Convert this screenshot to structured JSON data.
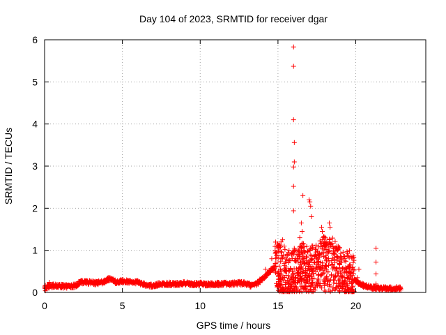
{
  "chart_data": {
    "type": "scatter",
    "title": "Day 104 of 2023, SRMTID for receiver dgar",
    "xlabel": "GPS time / hours",
    "ylabel": "SRMTID / TECUs",
    "xlim": [
      0,
      24.5
    ],
    "ylim": [
      0,
      6
    ],
    "grid": true,
    "marker": "+",
    "marker_color": "#ff0000",
    "x_ticks": [
      0,
      5,
      10,
      15,
      20
    ],
    "x_tick_labels": [
      "0",
      "5",
      "10",
      "15",
      "20"
    ],
    "y_ticks": [
      0,
      1,
      2,
      3,
      4,
      5,
      6
    ],
    "y_tick_labels": [
      "0",
      "1",
      "2",
      "3",
      "4",
      "5",
      "6"
    ],
    "series": [
      {
        "name": "SRMTID",
        "baseline_profile": [
          [
            0.0,
            0.12
          ],
          [
            0.3,
            0.14
          ],
          [
            0.6,
            0.16
          ],
          [
            1.0,
            0.15
          ],
          [
            1.5,
            0.14
          ],
          [
            2.0,
            0.16
          ],
          [
            2.3,
            0.25
          ],
          [
            2.8,
            0.24
          ],
          [
            3.3,
            0.22
          ],
          [
            3.8,
            0.25
          ],
          [
            4.2,
            0.33
          ],
          [
            4.6,
            0.24
          ],
          [
            5.0,
            0.27
          ],
          [
            5.5,
            0.25
          ],
          [
            6.0,
            0.24
          ],
          [
            6.5,
            0.17
          ],
          [
            7.0,
            0.17
          ],
          [
            7.5,
            0.2
          ],
          [
            8.0,
            0.2
          ],
          [
            8.5,
            0.2
          ],
          [
            9.0,
            0.22
          ],
          [
            9.5,
            0.2
          ],
          [
            10.0,
            0.2
          ],
          [
            10.5,
            0.19
          ],
          [
            11.0,
            0.2
          ],
          [
            11.5,
            0.2
          ],
          [
            12.0,
            0.2
          ],
          [
            12.5,
            0.22
          ],
          [
            13.0,
            0.2
          ],
          [
            13.3,
            0.16
          ],
          [
            13.6,
            0.2
          ],
          [
            14.0,
            0.32
          ],
          [
            14.4,
            0.48
          ],
          [
            14.8,
            0.6
          ],
          [
            15.2,
            0.5
          ],
          [
            15.6,
            0.35
          ],
          [
            16.0,
            0.4
          ],
          [
            16.5,
            0.55
          ],
          [
            17.0,
            0.45
          ],
          [
            17.5,
            0.5
          ],
          [
            18.0,
            0.7
          ],
          [
            18.5,
            0.65
          ],
          [
            19.0,
            0.45
          ],
          [
            19.5,
            0.38
          ],
          [
            20.0,
            0.28
          ],
          [
            20.5,
            0.16
          ],
          [
            21.0,
            0.12
          ],
          [
            21.5,
            0.1
          ],
          [
            22.0,
            0.09
          ],
          [
            22.5,
            0.09
          ],
          [
            22.9,
            0.1
          ]
        ],
        "active_band_hours": [
          14.8,
          19.9
        ],
        "outliers": [
          [
            16.0,
            5.83
          ],
          [
            16.0,
            5.37
          ],
          [
            16.0,
            4.1
          ],
          [
            16.05,
            3.56
          ],
          [
            16.05,
            3.1
          ],
          [
            16.0,
            2.98
          ],
          [
            16.0,
            2.52
          ],
          [
            16.0,
            1.94
          ],
          [
            16.6,
            2.3
          ],
          [
            17.0,
            2.2
          ],
          [
            17.05,
            2.15
          ],
          [
            17.1,
            2.05
          ],
          [
            17.15,
            1.8
          ],
          [
            16.5,
            1.65
          ],
          [
            16.55,
            1.45
          ],
          [
            16.4,
            1.3
          ],
          [
            16.45,
            1.1
          ],
          [
            16.5,
            0.95
          ],
          [
            17.8,
            1.55
          ],
          [
            17.85,
            1.45
          ],
          [
            17.9,
            1.3
          ],
          [
            18.3,
            1.65
          ],
          [
            18.35,
            1.55
          ],
          [
            18.0,
            1.15
          ],
          [
            18.6,
            1.05
          ],
          [
            15.2,
            1.2
          ],
          [
            15.3,
            1.25
          ],
          [
            15.0,
            1.05
          ],
          [
            15.1,
            1.12
          ],
          [
            15.4,
            1.1
          ],
          [
            14.6,
            0.8
          ],
          [
            14.2,
            0.55
          ],
          [
            19.0,
            0.85
          ],
          [
            19.3,
            0.75
          ],
          [
            19.6,
            0.65
          ],
          [
            20.2,
            0.55
          ],
          [
            20.1,
            0.35
          ],
          [
            21.3,
            1.05
          ],
          [
            21.3,
            0.72
          ],
          [
            21.3,
            0.44
          ],
          [
            21.3,
            0.2
          ],
          [
            15.8,
            0.05
          ],
          [
            16.2,
            0.1
          ],
          [
            17.0,
            0.05
          ],
          [
            18.0,
            0.05
          ],
          [
            0.3,
            0.24
          ],
          [
            0.25,
            0.18
          ],
          [
            0.15,
            0.08
          ],
          [
            0.05,
            0.04
          ]
        ]
      }
    ]
  }
}
